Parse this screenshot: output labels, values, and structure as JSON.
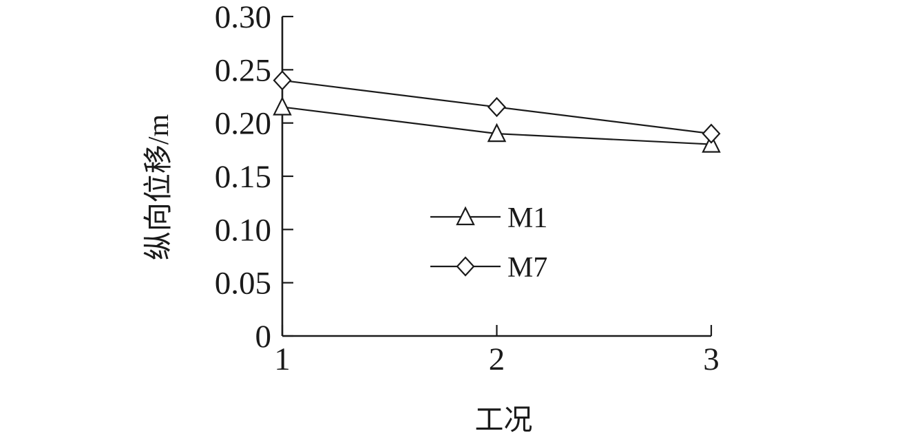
{
  "figure": {
    "background": "#ffffff",
    "ink_color": "#1a1a1a",
    "marker_fill": "#ffffff"
  },
  "chart_data": {
    "type": "line",
    "title": "",
    "xlabel": "工况",
    "ylabel": "纵向位移/m",
    "x": [
      1,
      2,
      3
    ],
    "xlim": [
      1,
      3
    ],
    "ylim": [
      0,
      0.3
    ],
    "xticks": [
      1,
      2,
      3
    ],
    "xtick_labels": [
      "1",
      "2",
      "3"
    ],
    "yticks": [
      0,
      0.05,
      0.1,
      0.15,
      0.2,
      0.25,
      0.3
    ],
    "ytick_labels": [
      "0",
      "0.05",
      "0.10",
      "0.15",
      "0.20",
      "0.25",
      "0.30"
    ],
    "grid": false,
    "legend_position": "inside-center",
    "series": [
      {
        "name": "M1",
        "marker": "triangle",
        "values": [
          0.215,
          0.19,
          0.18
        ]
      },
      {
        "name": "M7",
        "marker": "diamond",
        "values": [
          0.24,
          0.215,
          0.19
        ]
      }
    ]
  }
}
